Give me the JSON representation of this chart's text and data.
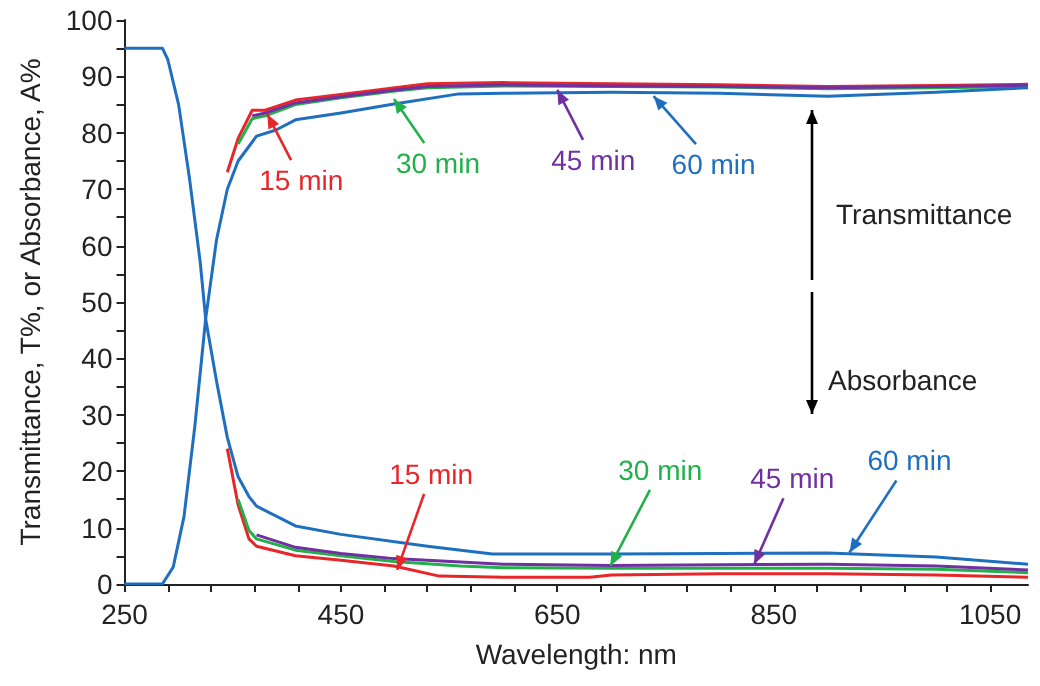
{
  "chart_data": {
    "type": "line",
    "xlabel": "Wavelength: nm",
    "ylabel": "Transmittance, T%, or Absorbance, A%",
    "xlim": [
      250,
      1085
    ],
    "ylim": [
      0,
      100
    ],
    "xticks": [
      250,
      {
        "value": 290,
        "label": null
      },
      {
        "value": 330,
        "label": null
      },
      {
        "value": 370,
        "label": null
      },
      {
        "value": 410,
        "label": null
      },
      450,
      {
        "value": 490,
        "label": null
      },
      {
        "value": 530,
        "label": null
      },
      {
        "value": 570,
        "label": null
      },
      {
        "value": 610,
        "label": null
      },
      650,
      {
        "value": 690,
        "label": null
      },
      {
        "value": 730,
        "label": null
      },
      {
        "value": 770,
        "label": null
      },
      {
        "value": 810,
        "label": null
      },
      850,
      {
        "value": 890,
        "label": null
      },
      {
        "value": 930,
        "label": null
      },
      {
        "value": 970,
        "label": null
      },
      {
        "value": 1010,
        "label": null
      },
      1050
    ],
    "yticks": [
      0,
      {
        "value": 5,
        "label": null
      },
      10,
      {
        "value": 15,
        "label": null
      },
      20,
      {
        "value": 25,
        "label": null
      },
      30,
      {
        "value": 35,
        "label": null
      },
      40,
      {
        "value": 45,
        "label": null
      },
      50,
      {
        "value": 55,
        "label": null
      },
      60,
      {
        "value": 65,
        "label": null
      },
      70,
      {
        "value": 75,
        "label": null
      },
      80,
      {
        "value": 85,
        "label": null
      },
      90,
      {
        "value": 95,
        "label": null
      },
      100
    ],
    "grid": false,
    "marker": "none",
    "line_style": "solid",
    "series": [
      {
        "color": "#e8262a",
        "x": [
          345,
          355,
          368,
          380,
          408,
          450,
          500,
          530,
          600,
          700,
          800,
          900,
          1000,
          1085
        ],
        "values": [
          73,
          79,
          84,
          84,
          85.8,
          86.8,
          88,
          88.7,
          88.9,
          88.7,
          88.5,
          88.2,
          88.4,
          88.6
        ]
      },
      {
        "color": "#22b04b",
        "x": [
          355,
          368,
          380,
          408,
          450,
          500,
          530,
          600,
          700,
          800,
          900,
          1000,
          1085
        ],
        "values": [
          78,
          82.5,
          83,
          85,
          86.2,
          87.4,
          88,
          88.3,
          88.2,
          88.1,
          87.8,
          88,
          88.2
        ]
      },
      {
        "color": "#7030a0",
        "x": [
          368,
          380,
          408,
          450,
          500,
          530,
          600,
          700,
          800,
          900,
          1000,
          1085
        ],
        "values": [
          83,
          83.5,
          85.3,
          86.4,
          87.6,
          88.2,
          88.5,
          88.3,
          88.2,
          88,
          88.2,
          88.4
        ]
      },
      {
        "color": "#1f6fc0",
        "x": [
          250,
          285,
          295,
          305,
          315,
          325,
          335,
          345,
          355,
          372,
          390,
          408,
          450,
          499,
          559,
          600,
          700,
          800,
          900,
          1000,
          1085
        ],
        "values": [
          0,
          0,
          3,
          12,
          28,
          47,
          61,
          70,
          75,
          79.4,
          80.5,
          82.3,
          83.5,
          85.1,
          86.9,
          87,
          87.2,
          87,
          86.5,
          87.2,
          88
        ]
      },
      {
        "color": "#e8262a",
        "x": [
          345,
          355,
          365,
          372,
          408,
          450,
          499,
          541,
          600,
          680,
          700,
          800,
          900,
          1000,
          1085
        ],
        "values": [
          24,
          14,
          8,
          6.7,
          5,
          4.2,
          3.2,
          1.4,
          1.2,
          1.2,
          1.6,
          1.8,
          1.8,
          1.6,
          1.2
        ]
      },
      {
        "color": "#22b04b",
        "x": [
          355,
          365,
          372,
          408,
          450,
          499,
          560,
          600,
          700,
          800,
          900,
          1000,
          1085
        ],
        "values": [
          15,
          9.5,
          8,
          6,
          5,
          4,
          3.2,
          2.9,
          2.8,
          2.8,
          2.8,
          2.6,
          2
        ]
      },
      {
        "color": "#7030a0",
        "x": [
          372,
          408,
          450,
          499,
          600,
          700,
          800,
          900,
          1000,
          1085
        ],
        "values": [
          8.7,
          6.5,
          5.4,
          4.5,
          3.5,
          3.3,
          3.4,
          3.5,
          3.2,
          2.5
        ]
      },
      {
        "color": "#1f6fc0",
        "x": [
          250,
          285,
          290,
          300,
          310,
          320,
          325,
          335,
          345,
          355,
          365,
          372,
          408,
          450,
          530,
          590,
          700,
          800,
          900,
          1000,
          1085
        ],
        "values": [
          95,
          95,
          93,
          85,
          72,
          57,
          47,
          36,
          26,
          19,
          15.5,
          13.8,
          10.3,
          8.8,
          6.7,
          5.3,
          5.3,
          5.4,
          5.5,
          4.8,
          3.5
        ]
      }
    ],
    "annotations": [
      {
        "text": "15 min",
        "x": 382,
        "y": 83.3
      },
      {
        "text": "30 min",
        "x": 499,
        "y": 86
      },
      {
        "text": "45 min",
        "x": 650,
        "y": 87.6
      },
      {
        "text": "60 min",
        "x": 739,
        "y": 86.5
      },
      {
        "text": "15 min",
        "x": 502,
        "y": 2.5
      },
      {
        "text": "30 min",
        "x": 699,
        "y": 3.2
      },
      {
        "text": "45 min",
        "x": 832,
        "y": 3.5
      },
      {
        "text": "60 min",
        "x": 920,
        "y": 5.6
      },
      "Transmittance",
      "Absorbance"
    ]
  }
}
